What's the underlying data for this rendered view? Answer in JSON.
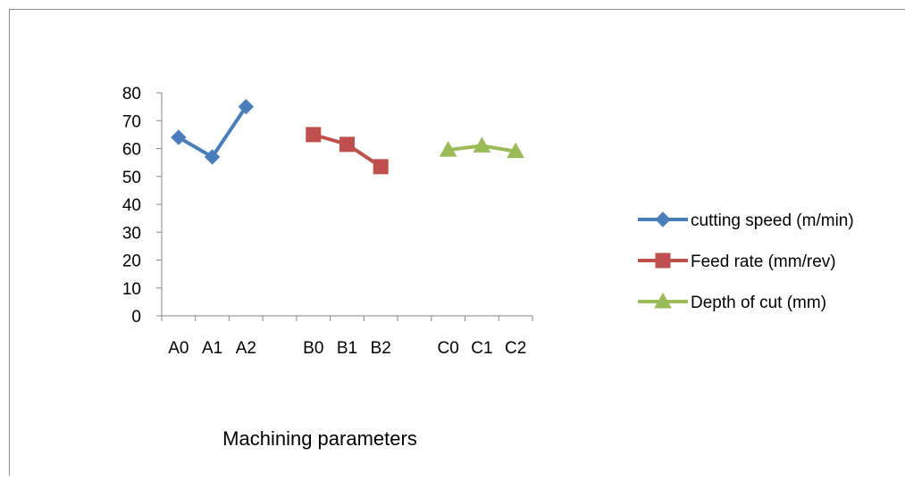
{
  "chart_data": {
    "type": "line",
    "title": "",
    "xlabel": "Machining parameters",
    "ylabel": "",
    "ylim": [
      0,
      80
    ],
    "yticks": [
      0,
      10,
      20,
      30,
      40,
      50,
      60,
      70,
      80
    ],
    "categories": [
      "A0",
      "A1",
      "A2",
      "",
      "B0",
      "B1",
      "B2",
      "",
      "C0",
      "C1",
      "C2"
    ],
    "grid": false,
    "legend_position": "right",
    "series": [
      {
        "name": "cutting speed (m/min)",
        "marker": "diamond",
        "color": "#4a7ebb",
        "x": [
          "A0",
          "A1",
          "A2"
        ],
        "values": [
          64,
          57,
          75
        ]
      },
      {
        "name": "Feed rate (mm/rev)",
        "marker": "square",
        "color": "#c0504d",
        "x": [
          "B0",
          "B1",
          "B2"
        ],
        "values": [
          65,
          61.5,
          53.5
        ]
      },
      {
        "name": "Depth of cut (mm)",
        "marker": "triangle",
        "color": "#9bbb59",
        "x": [
          "C0",
          "C1",
          "C2"
        ],
        "values": [
          59.5,
          61,
          59
        ]
      }
    ]
  }
}
